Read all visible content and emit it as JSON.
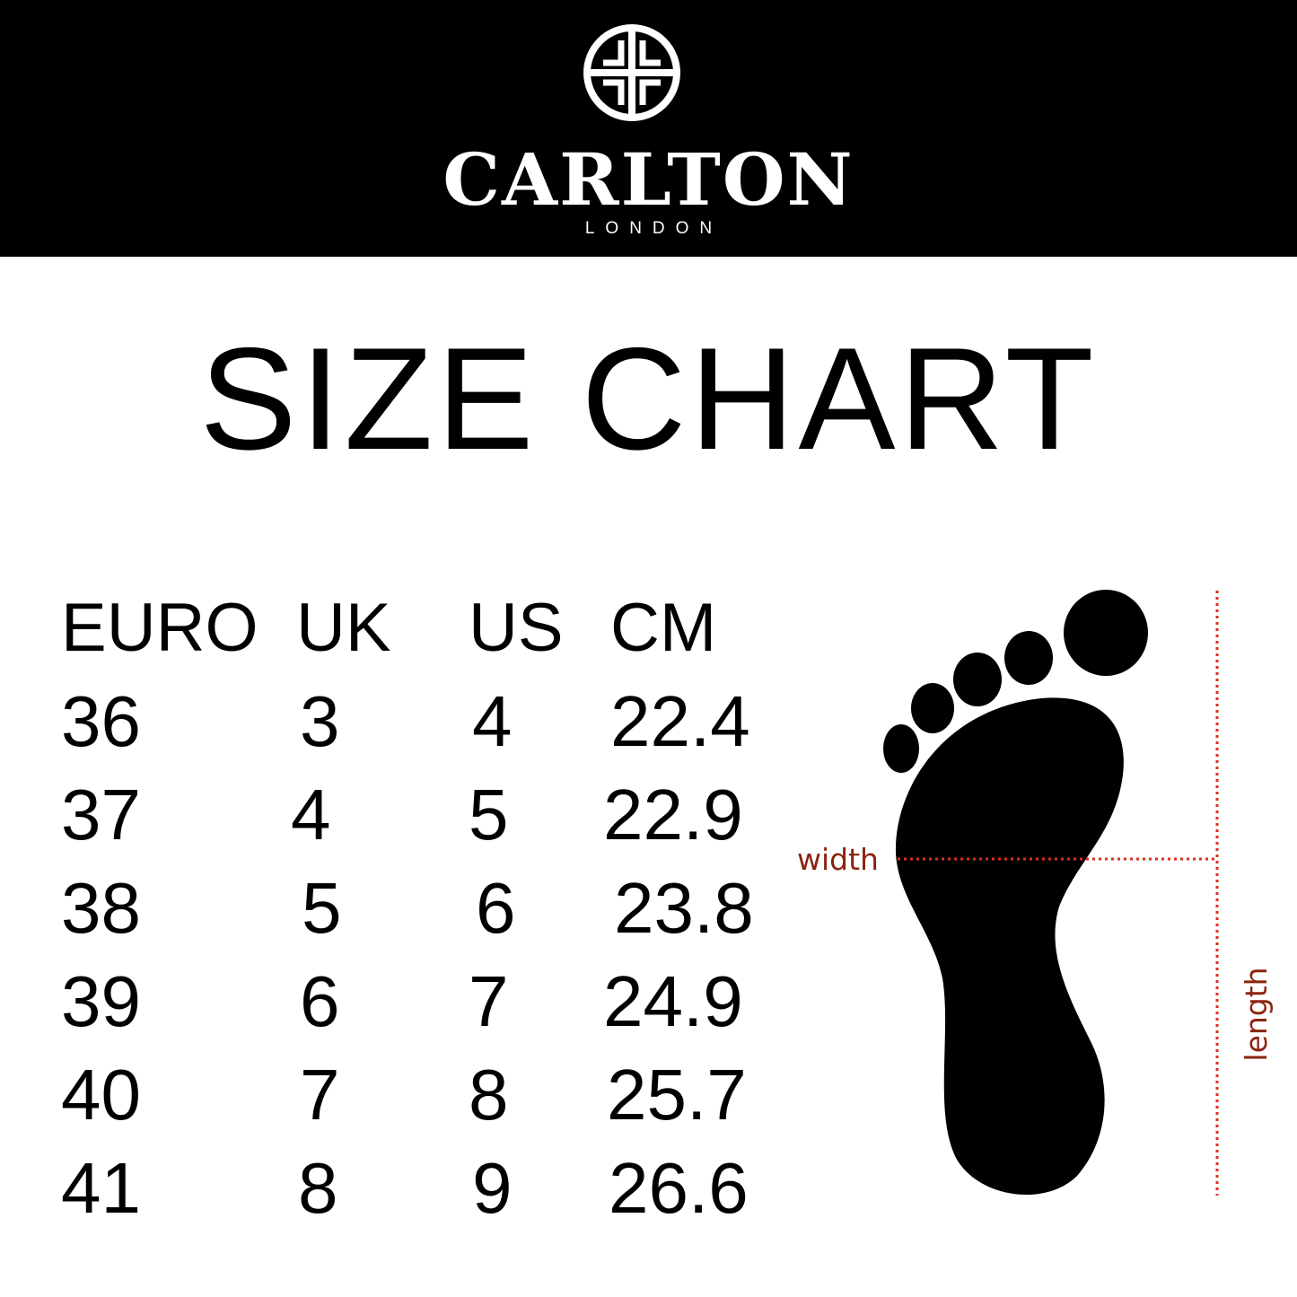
{
  "brand": {
    "name": "CARLTON",
    "sub": "LONDON",
    "logo_icon": "carlton-crest-icon"
  },
  "title": "SIZE CHART",
  "table": {
    "headers": [
      "EURO",
      "UK",
      "US",
      "CM"
    ],
    "rows": [
      [
        "36",
        "3",
        "4",
        "22.4"
      ],
      [
        "37",
        "4",
        "5",
        "22.9"
      ],
      [
        "38",
        "5",
        "6",
        "23.8"
      ],
      [
        "39",
        "6",
        "7",
        "24.9"
      ],
      [
        "40",
        "7",
        "8",
        "25.7"
      ],
      [
        "41",
        "8",
        "9",
        "26.6"
      ]
    ]
  },
  "diagram": {
    "width_label": "width",
    "length_label": "length",
    "measure_color": "#d9301c",
    "label_color": "#8b2410"
  }
}
